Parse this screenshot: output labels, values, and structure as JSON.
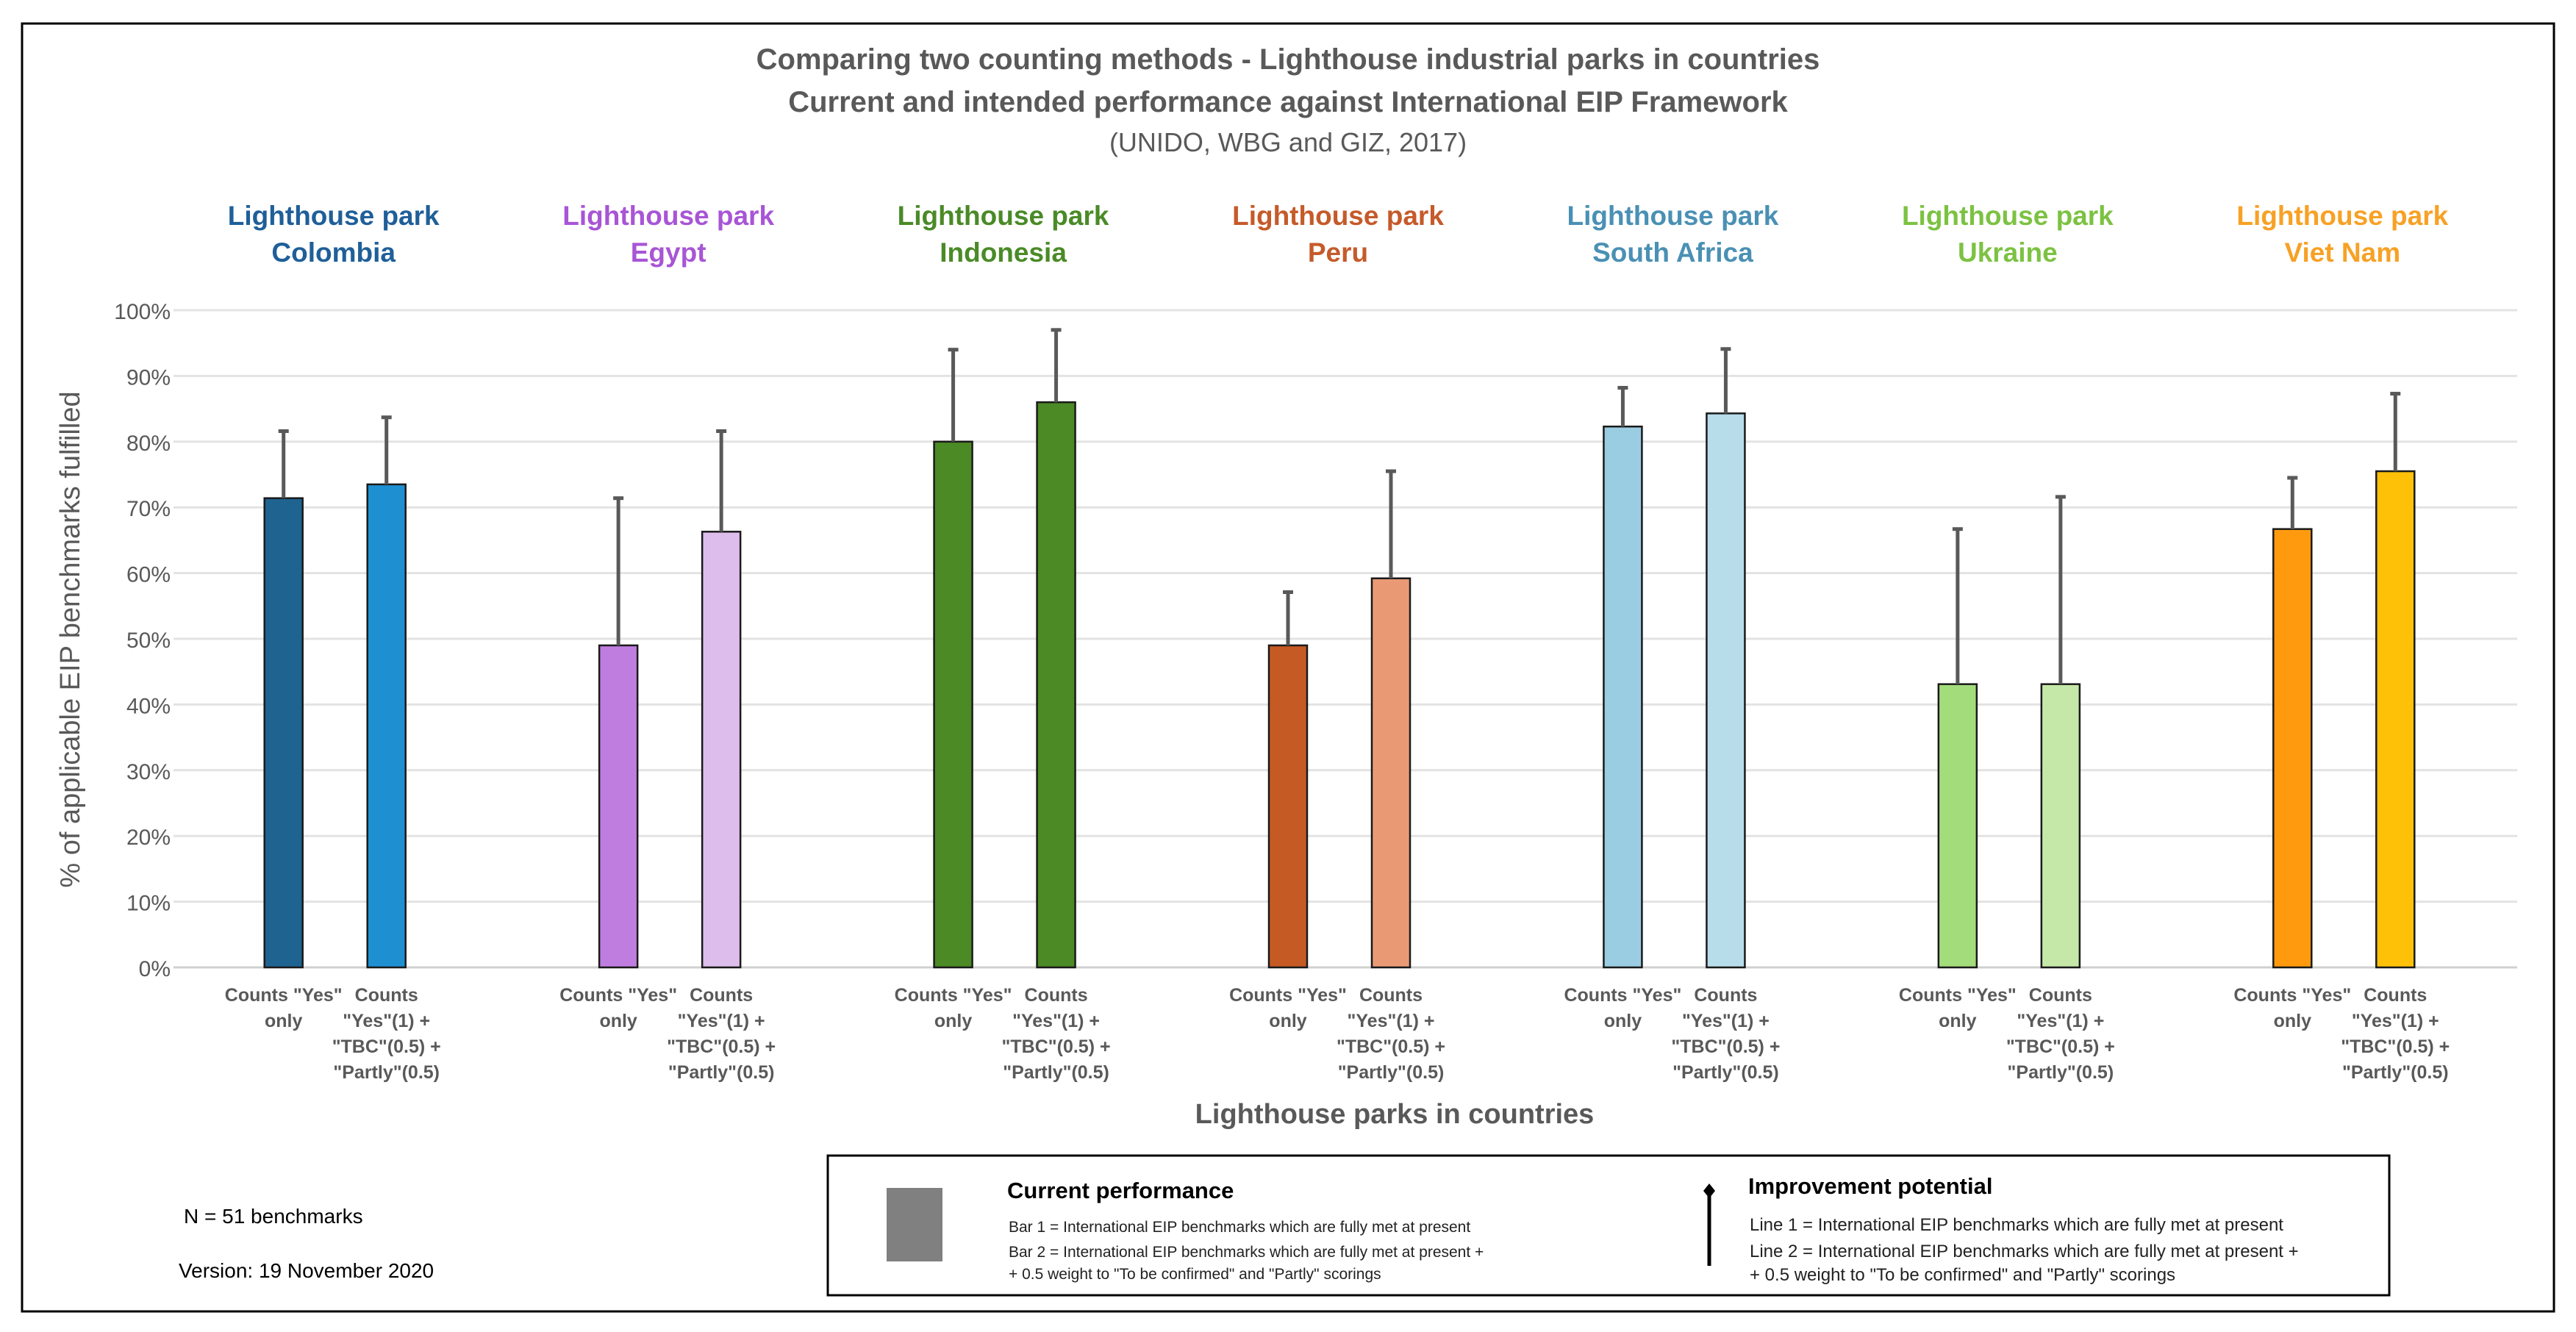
{
  "chart_data": {
    "type": "bar",
    "title": "Comparing two counting methods - Lighthouse industrial parks in countries",
    "subtitle": "Current and intended performance against International EIP Framework",
    "source": "(UNIDO, WBG and GIZ, 2017)",
    "ylabel": "% of applicable EIP benchmarks fulfilled",
    "xlabel": "Lighthouse parks in countries",
    "ylim": [
      0,
      100
    ],
    "yticks": [
      "0%",
      "10%",
      "20%",
      "30%",
      "40%",
      "50%",
      "60%",
      "70%",
      "80%",
      "90%",
      "100%"
    ],
    "grid": true,
    "method_labels": [
      [
        "Counts \"Yes\"",
        "only"
      ],
      [
        "Counts",
        "\"Yes\"(1) +",
        "\"TBC\"(0.5) +",
        "\"Partly\"(0.5)"
      ]
    ],
    "groups": [
      {
        "line1": "Lighthouse park",
        "line2": "Colombia",
        "color": "#1F5F99",
        "bars": [
          {
            "value": 71.4,
            "upper": 81.6,
            "color": "#1F6391"
          },
          {
            "value": 73.5,
            "upper": 83.7,
            "color": "#1E90D2"
          }
        ]
      },
      {
        "line1": "Lighthouse park",
        "line2": "Egypt",
        "color": "#A855D6",
        "bars": [
          {
            "value": 49.0,
            "upper": 71.4,
            "color": "#C07DE0"
          },
          {
            "value": 66.3,
            "upper": 81.6,
            "color": "#DDBDEC"
          }
        ]
      },
      {
        "line1": "Lighthouse park",
        "line2": "Indonesia",
        "color": "#4A8A27",
        "bars": [
          {
            "value": 80.0,
            "upper": 94.0,
            "color": "#4B8A24"
          },
          {
            "value": 86.0,
            "upper": 97.0,
            "color": "#4B8A24"
          }
        ]
      },
      {
        "line1": "Lighthouse park",
        "line2": "Peru",
        "color": "#C55A2A",
        "bars": [
          {
            "value": 49.0,
            "upper": 57.1,
            "color": "#C55A24"
          },
          {
            "value": 59.2,
            "upper": 75.5,
            "color": "#E99A75"
          }
        ]
      },
      {
        "line1": "Lighthouse park",
        "line2": "South Africa",
        "color": "#4A90B4",
        "bars": [
          {
            "value": 82.3,
            "upper": 88.2,
            "color": "#9ACCE2"
          },
          {
            "value": 84.3,
            "upper": 94.1,
            "color": "#B8DDEA"
          }
        ]
      },
      {
        "line1": "Lighthouse park",
        "line2": "Ukraine",
        "color": "#7CC242",
        "bars": [
          {
            "value": 43.1,
            "upper": 66.7,
            "color": "#A3DC7B"
          },
          {
            "value": 43.1,
            "upper": 71.6,
            "color": "#C5E8A8"
          }
        ]
      },
      {
        "line1": "Lighthouse park",
        "line2": "Viet Nam",
        "color": "#F7A125",
        "bars": [
          {
            "value": 66.7,
            "upper": 74.5,
            "color": "#FF9A0F"
          },
          {
            "value": 75.5,
            "upper": 87.3,
            "color": "#FFC107"
          }
        ]
      }
    ]
  },
  "notes": {
    "n": "N = 51 benchmarks",
    "version": "Version: 19 November 2020"
  },
  "legend": {
    "current_title": "Current performance",
    "current_line1": "Bar 1 = International EIP benchmarks which are fully met at present",
    "current_line2": "Bar 2 = International EIP benchmarks which are fully met at present  +",
    "current_line3": "+ 0.5 weight to \"To be confirmed\" and \"Partly\" scorings",
    "improve_title": "Improvement potential",
    "improve_line1": "Line 1 = International EIP benchmarks which are fully met at present",
    "improve_line2": "Line 2 = International EIP benchmarks which are fully met at present  +",
    "improve_line3": "+ 0.5 weight to \"To be confirmed\" and \"Partly\" scorings",
    "swatch_color": "#808080"
  }
}
